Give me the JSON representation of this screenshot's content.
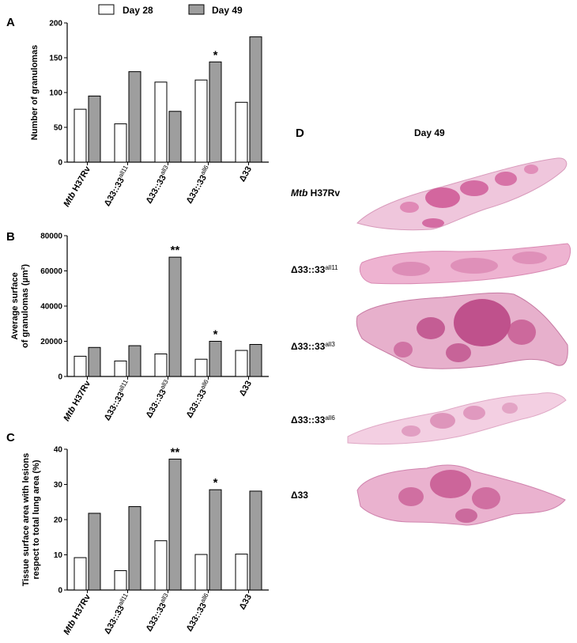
{
  "legend": {
    "day28_label": "Day 28",
    "day49_label": "Day 49",
    "day28_color": "#ffffff",
    "day49_color": "#9e9e9e"
  },
  "categories": [
    {
      "pre": "",
      "main": "Mtb",
      "post": " H37Rv",
      "sup": ""
    },
    {
      "pre": "",
      "main": "Δ33::33",
      "post": "",
      "sup": "all11"
    },
    {
      "pre": "",
      "main": "Δ33::33",
      "post": "",
      "sup": "all3"
    },
    {
      "pre": "",
      "main": "Δ33::33",
      "post": "",
      "sup": "all6"
    },
    {
      "pre": "",
      "main": "Δ33",
      "post": "",
      "sup": ""
    }
  ],
  "chart_data": [
    {
      "panel": "A",
      "type": "bar",
      "ylabel": [
        "Number of granulomas"
      ],
      "ylim": [
        0,
        200
      ],
      "yticks": [
        0,
        50,
        100,
        150,
        200
      ],
      "series": [
        {
          "name": "Day 28",
          "values": [
            76,
            55,
            115,
            118,
            86
          ]
        },
        {
          "name": "Day 49",
          "values": [
            95,
            130,
            73,
            144,
            180
          ]
        }
      ],
      "annotations": [
        {
          "category": 3,
          "series": 1,
          "text": "*"
        }
      ]
    },
    {
      "panel": "B",
      "type": "bar",
      "ylabel": [
        "Average surface",
        "of granulomas (µm²)"
      ],
      "ylim": [
        0,
        80000
      ],
      "yticks": [
        0,
        20000,
        40000,
        60000,
        80000
      ],
      "series": [
        {
          "name": "Day 28",
          "values": [
            11500,
            8800,
            12800,
            9800,
            14800
          ]
        },
        {
          "name": "Day 49",
          "values": [
            16500,
            17500,
            67800,
            20000,
            18200
          ]
        }
      ],
      "annotations": [
        {
          "category": 2,
          "series": 1,
          "text": "**"
        },
        {
          "category": 3,
          "series": 1,
          "text": "*"
        }
      ]
    },
    {
      "panel": "C",
      "type": "bar",
      "ylabel": [
        "Tissue surface area with lesions",
        "respect to total lung area (%)"
      ],
      "ylim": [
        0,
        40
      ],
      "yticks": [
        0,
        10,
        20,
        30,
        40
      ],
      "series": [
        {
          "name": "Day 28",
          "values": [
            9.2,
            5.5,
            14,
            10.1,
            10.2
          ]
        },
        {
          "name": "Day 49",
          "values": [
            21.8,
            23.7,
            37.2,
            28.5,
            28.1
          ]
        }
      ],
      "annotations": [
        {
          "category": 2,
          "series": 1,
          "text": "**"
        },
        {
          "category": 3,
          "series": 1,
          "text": "*"
        }
      ]
    }
  ],
  "panel_d": {
    "letter": "D",
    "title": "Day 49",
    "rows": [
      {
        "main": "Mtb",
        "post": " H37Rv",
        "sup": ""
      },
      {
        "main": "Δ33::33",
        "post": "",
        "sup": "all11"
      },
      {
        "main": "Δ33::33",
        "post": "",
        "sup": "all3"
      },
      {
        "main": "Δ33::33",
        "post": "",
        "sup": "all6"
      },
      {
        "main": "Δ33",
        "post": "",
        "sup": ""
      }
    ],
    "tissue_color": "#e8a9c8",
    "lesion_color": "#c9468a"
  }
}
